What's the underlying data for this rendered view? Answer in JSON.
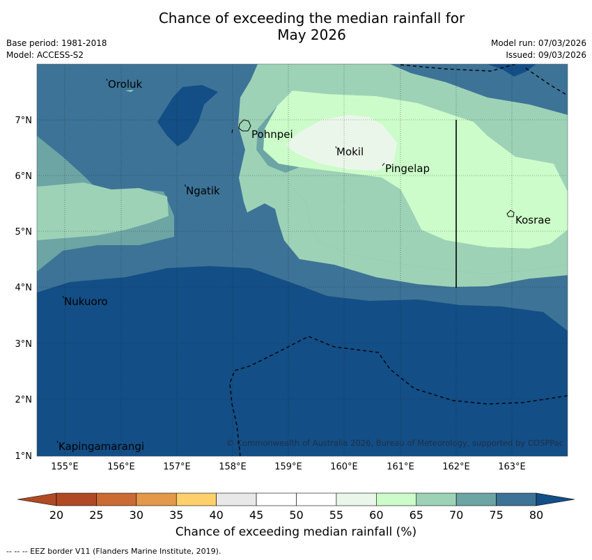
{
  "header": {
    "title_line1": "Chance of exceeding the median rainfall for",
    "title_line2": "May 2026",
    "base_period": "Base period: 1981-2018",
    "model": "Model: ACCESS-S2",
    "model_run": "Model run: 07/03/2026",
    "issued": "Issued: 09/03/2026"
  },
  "map": {
    "lon_ticks": [
      "155°E",
      "156°E",
      "157°E",
      "158°E",
      "159°E",
      "160°E",
      "161°E",
      "162°E",
      "163°E"
    ],
    "lat_ticks": [
      "7°N",
      "6°N",
      "5°N",
      "4°N",
      "3°N",
      "2°N",
      "1°N"
    ],
    "places": [
      "Oroluk",
      "Pohnpei",
      "Mokil",
      "Pingelap",
      "Ngatik",
      "Kosrae",
      "Nukuoro",
      "Kapingamarangi"
    ],
    "copyright": "© Commonwealth of Australia 2026, Bureau of Meteorology, supported by COSPPac"
  },
  "colorbar": {
    "ticks": [
      "20",
      "25",
      "30",
      "35",
      "40",
      "45",
      "50",
      "55",
      "60",
      "65",
      "70",
      "75",
      "80"
    ],
    "colors": [
      "#b04a24",
      "#cc6a33",
      "#e3984a",
      "#fdd06c",
      "#e8e8e8",
      "#ffffff",
      "#ffffff",
      "#ebf6ea",
      "#ccfcc9",
      "#9dd2b7",
      "#6ca5a4",
      "#3d7396",
      "#134e86"
    ],
    "label": "Chance of exceeding median rainfall (%)"
  },
  "footer": "--  --  -- EEZ border V11 (Flanders Marine Institute, 2019)."
}
